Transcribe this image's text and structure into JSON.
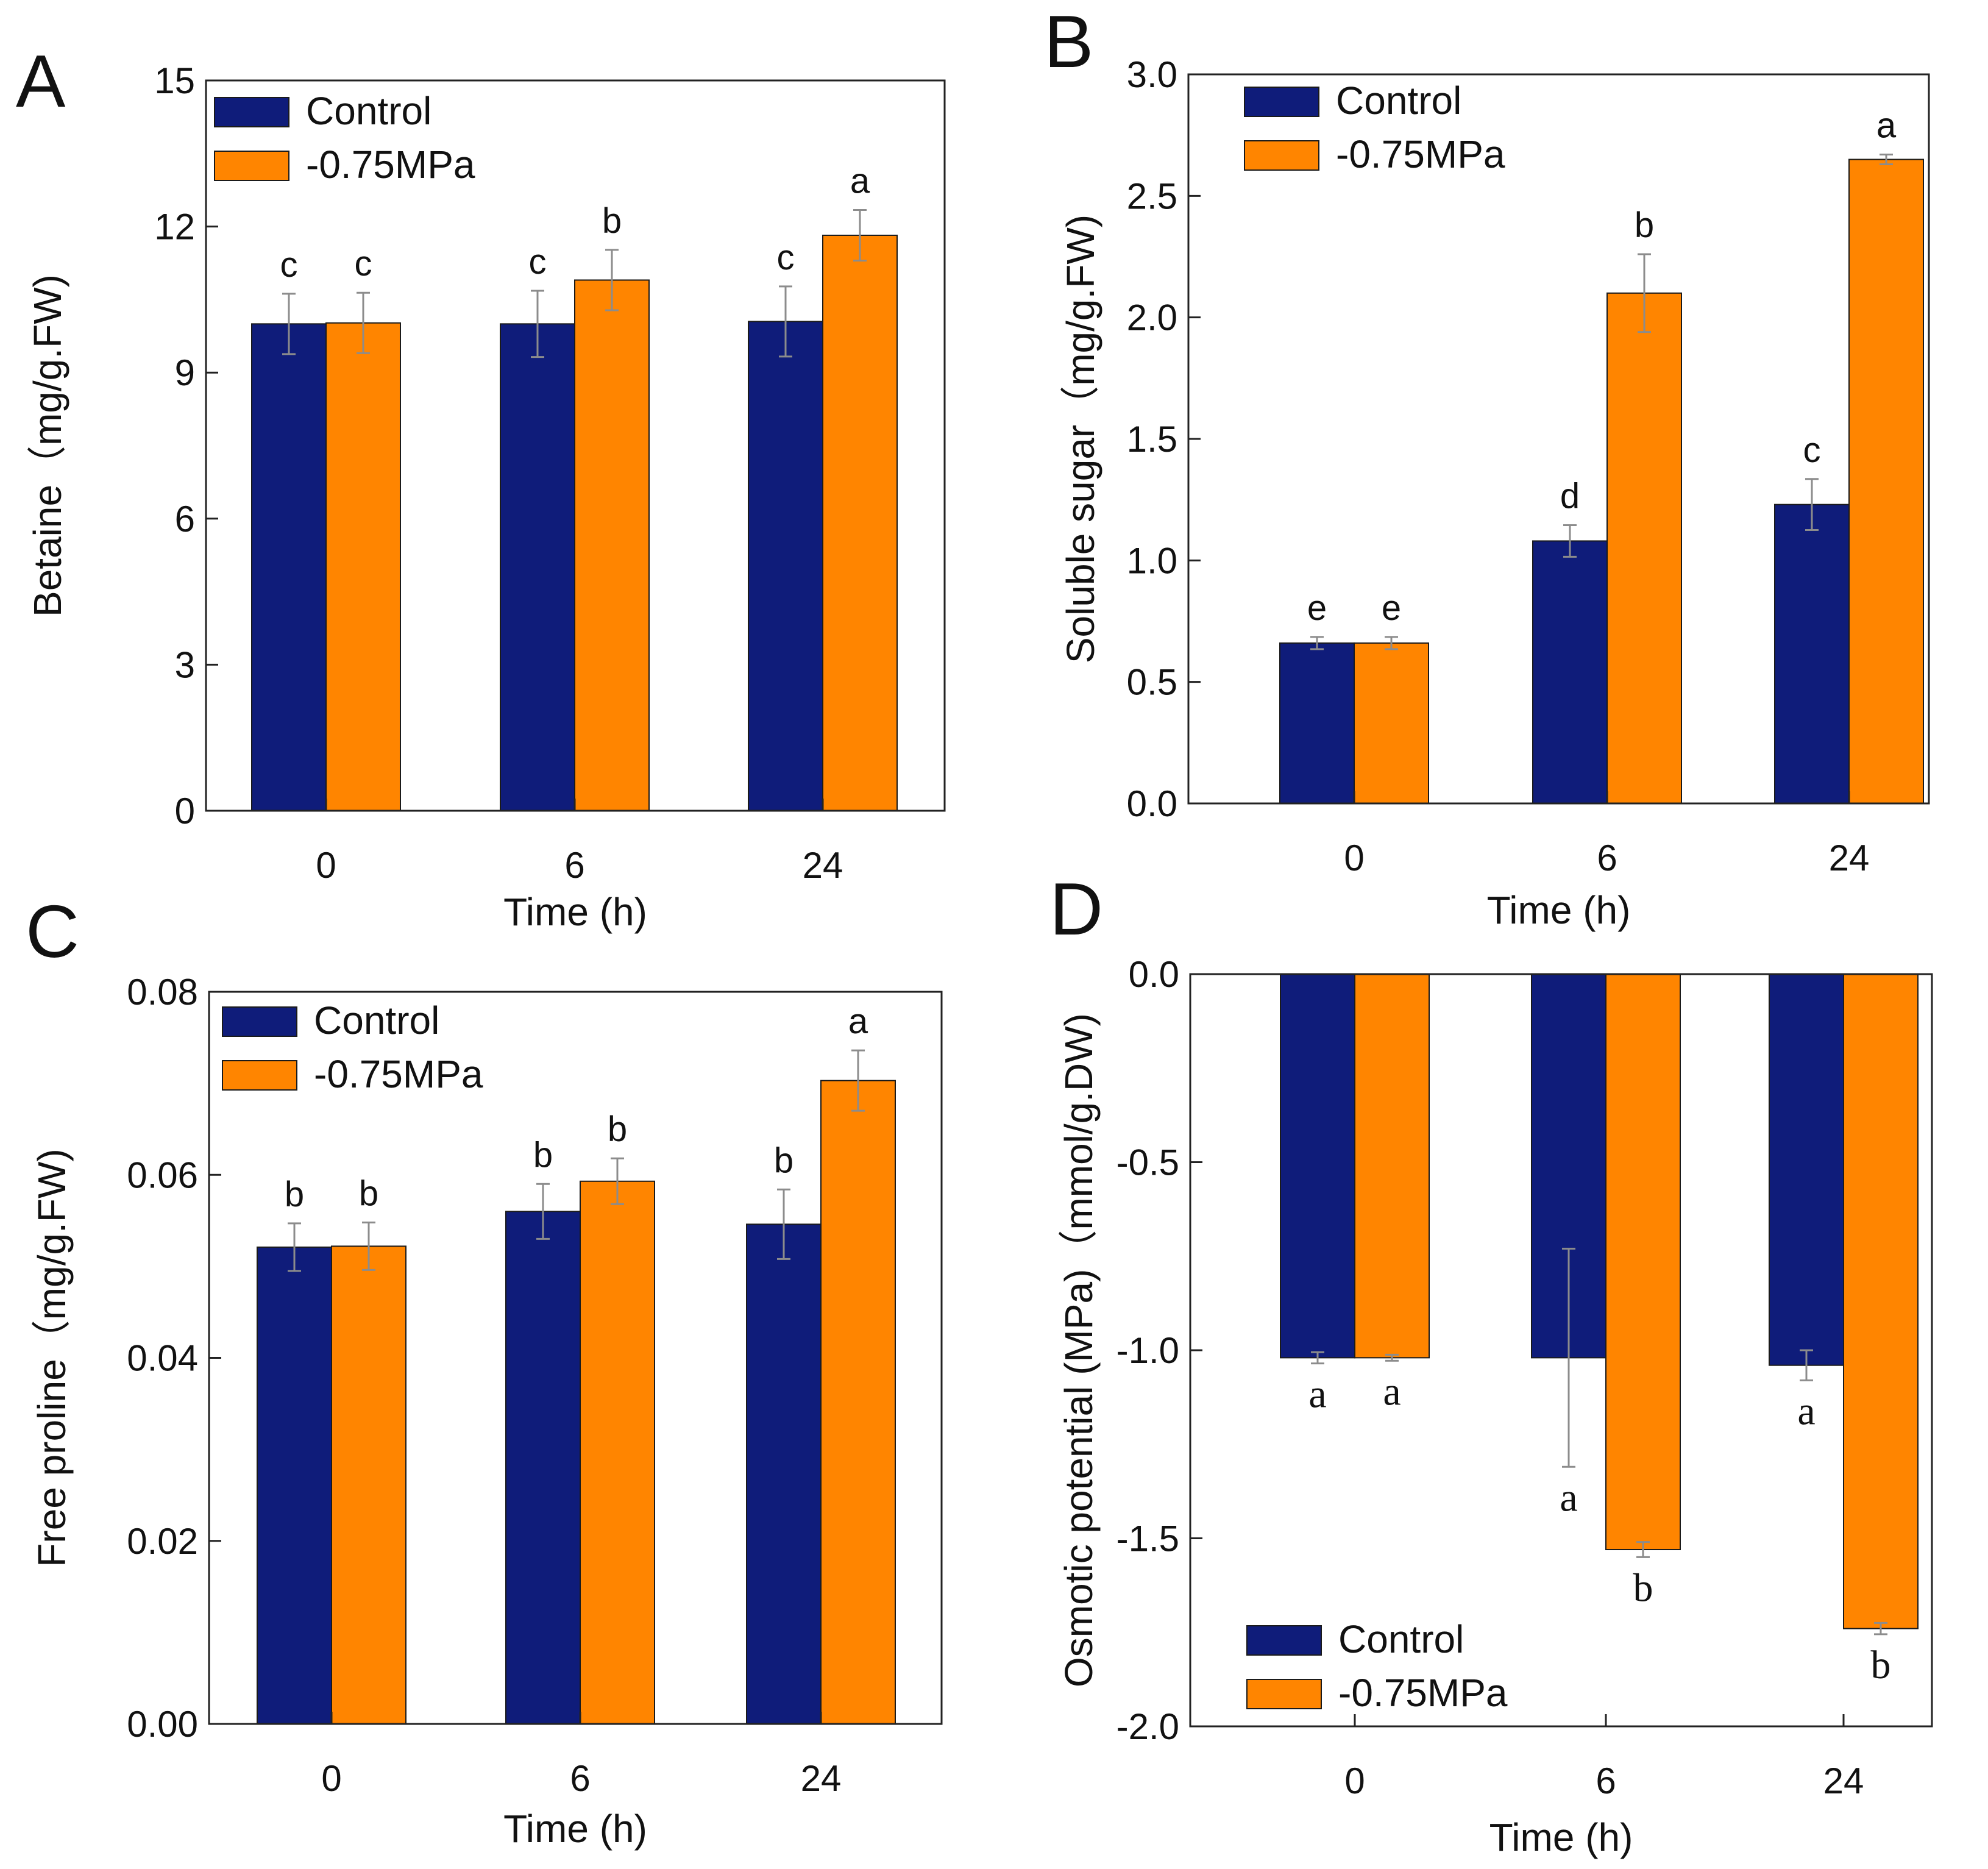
{
  "figure": {
    "colors": {
      "control": "#0f1c7a",
      "drought": "#ff8500",
      "error_bar": "#8c8c8c",
      "axis": "#222222"
    },
    "legend_labels": [
      "Control",
      "-0.75MPa"
    ]
  },
  "chart_data": [
    {
      "panel": "A",
      "type": "bar",
      "xlabel": "Time (h)",
      "ylabel": "Betaine（mg/g.FW)",
      "categories": [
        "0",
        "6",
        "24"
      ],
      "ylim": [
        0,
        15
      ],
      "yticks": [
        0,
        3,
        6,
        9,
        12,
        15
      ],
      "tick_decimals": 0,
      "legend_position": "top-left",
      "letter_font": "sans",
      "series": [
        {
          "name": "Control",
          "values": [
            10.0,
            10.0,
            10.05
          ],
          "errors": [
            0.62,
            0.68,
            0.72
          ],
          "letters": [
            "c",
            "c",
            "c"
          ]
        },
        {
          "name": "-0.75MPa",
          "values": [
            10.02,
            10.9,
            11.82
          ],
          "errors": [
            0.62,
            0.62,
            0.52
          ],
          "letters": [
            "c",
            "b",
            "a"
          ]
        }
      ]
    },
    {
      "panel": "B",
      "type": "bar",
      "xlabel": "Time (h)",
      "ylabel": "Soluble sugar（mg/g.FW)",
      "categories": [
        "0",
        "6",
        "24"
      ],
      "ylim": [
        0,
        3.0
      ],
      "yticks": [
        0.0,
        0.5,
        1.0,
        1.5,
        2.0,
        2.5,
        3.0
      ],
      "tick_decimals": 1,
      "legend_position": "top-left",
      "letter_font": "sans",
      "series": [
        {
          "name": "Control",
          "values": [
            0.66,
            1.08,
            1.23
          ],
          "errors": [
            0.025,
            0.065,
            0.105
          ],
          "letters": [
            "e",
            "d",
            "c"
          ]
        },
        {
          "name": "-0.75MPa",
          "values": [
            0.66,
            2.1,
            2.65
          ],
          "errors": [
            0.025,
            0.16,
            0.02
          ],
          "letters": [
            "e",
            "b",
            "a"
          ]
        }
      ]
    },
    {
      "panel": "C",
      "type": "bar",
      "xlabel": "Time (h)",
      "ylabel": "Free proline（mg/g.FW)",
      "categories": [
        "0",
        "6",
        "24"
      ],
      "ylim": [
        0,
        0.08
      ],
      "yticks": [
        0.0,
        0.02,
        0.04,
        0.06,
        0.08
      ],
      "tick_decimals": 2,
      "legend_position": "top-left",
      "letter_font": "sans",
      "series": [
        {
          "name": "Control",
          "values": [
            0.0521,
            0.056,
            0.0546
          ],
          "errors": [
            0.0026,
            0.003,
            0.0038
          ],
          "letters": [
            "b",
            "b",
            "b"
          ]
        },
        {
          "name": "-0.75MPa",
          "values": [
            0.0522,
            0.0593,
            0.0703
          ],
          "errors": [
            0.0026,
            0.0025,
            0.0033
          ],
          "letters": [
            "b",
            "b",
            "a"
          ]
        }
      ]
    },
    {
      "panel": "D",
      "type": "bar",
      "xlabel": "Time (h)",
      "ylabel": "Osmotic potential (MPa)（mmol/g.DW)",
      "categories": [
        "0",
        "6",
        "24"
      ],
      "ylim": [
        -2.0,
        0.0
      ],
      "yticks": [
        -2.0,
        -1.5,
        -1.0,
        -0.5,
        0.0
      ],
      "tick_decimals": 1,
      "legend_position": "bottom-left",
      "letter_font": "serif",
      "series": [
        {
          "name": "Control",
          "values": [
            -1.02,
            -1.02,
            -1.04
          ],
          "errors": [
            0.015,
            0.29,
            0.04
          ],
          "letters": [
            "a",
            "a",
            "a"
          ]
        },
        {
          "name": "-0.75MPa",
          "values": [
            -1.02,
            -1.53,
            -1.74
          ],
          "errors": [
            0.008,
            0.02,
            0.015
          ],
          "letters": [
            "a",
            "b",
            "b"
          ]
        }
      ]
    }
  ]
}
